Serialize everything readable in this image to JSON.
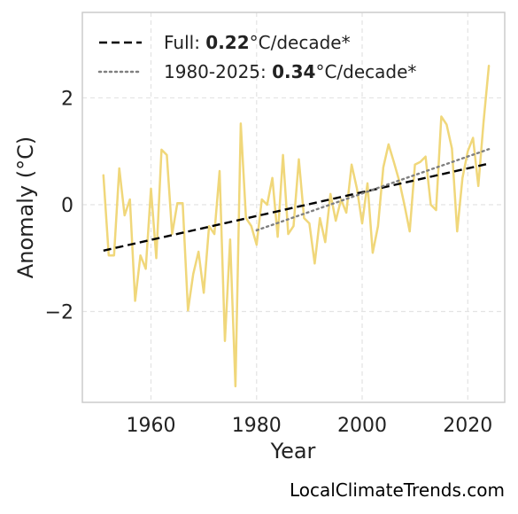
{
  "chart_data": {
    "type": "line",
    "xlabel": "Year",
    "ylabel": "Anomaly (°C)",
    "xlim": [
      1947,
      2027
    ],
    "ylim": [
      -3.7,
      3.6
    ],
    "x_ticks": [
      1960,
      1980,
      2000,
      2020
    ],
    "x_tick_labels": [
      "1960",
      "1980",
      "2000",
      "2020"
    ],
    "y_ticks": [
      -2,
      0,
      2
    ],
    "y_tick_labels": [
      "−2",
      "0",
      "2"
    ],
    "grid": true,
    "legend_position": "top-left",
    "series": [
      {
        "style": "solid",
        "color": "#f0d77a",
        "x": [
          1951,
          1952,
          1953,
          1954,
          1955,
          1956,
          1957,
          1958,
          1959,
          1960,
          1961,
          1962,
          1963,
          1964,
          1965,
          1966,
          1967,
          1968,
          1969,
          1970,
          1971,
          1972,
          1973,
          1974,
          1975,
          1976,
          1977,
          1978,
          1979,
          1980,
          1981,
          1982,
          1983,
          1984,
          1985,
          1986,
          1987,
          1988,
          1989,
          1990,
          1991,
          1992,
          1993,
          1994,
          1995,
          1996,
          1997,
          1998,
          1999,
          2000,
          2001,
          2002,
          2003,
          2004,
          2005,
          2006,
          2007,
          2008,
          2009,
          2010,
          2011,
          2012,
          2013,
          2014,
          2015,
          2016,
          2017,
          2018,
          2019,
          2020,
          2021,
          2022,
          2023,
          2024
        ],
        "y": [
          0.55,
          -0.95,
          -0.95,
          0.68,
          -0.2,
          0.1,
          -1.8,
          -0.95,
          -1.2,
          0.3,
          -1.0,
          1.03,
          0.93,
          -0.55,
          0.03,
          0.03,
          -1.98,
          -1.3,
          -0.88,
          -1.65,
          -0.4,
          -0.55,
          0.63,
          -2.55,
          -0.65,
          -3.4,
          1.52,
          -0.25,
          -0.4,
          -0.75,
          0.1,
          0.0,
          0.5,
          -0.6,
          0.93,
          -0.55,
          -0.4,
          0.85,
          -0.25,
          -0.35,
          -1.1,
          -0.25,
          -0.7,
          0.2,
          -0.3,
          0.1,
          -0.15,
          0.75,
          0.3,
          -0.35,
          0.4,
          -0.9,
          -0.4,
          0.7,
          1.13,
          0.8,
          0.45,
          0.0,
          -0.5,
          0.75,
          0.8,
          0.9,
          0.0,
          -0.1,
          1.65,
          1.5,
          1.05,
          -0.5,
          0.5,
          1.0,
          1.25,
          0.35,
          1.55,
          2.6
        ]
      },
      {
        "name": "Full",
        "style": "dashed",
        "color": "#000000",
        "x": [
          1951,
          2024
        ],
        "y": [
          -0.86,
          0.77
        ]
      },
      {
        "name": "1980-2025",
        "style": "dotted",
        "color": "#808080",
        "x": [
          1980,
          2024
        ],
        "y": [
          -0.48,
          1.04
        ]
      }
    ],
    "legend": [
      {
        "prefix": "Full: ",
        "value": "0.22",
        "suffix": "°C/decade*",
        "style": "dashed",
        "color": "#000000"
      },
      {
        "prefix": "1980-2025: ",
        "value": "0.34",
        "suffix": "°C/decade*",
        "style": "dotted",
        "color": "#808080"
      }
    ]
  },
  "credit": "LocalClimateTrends.com"
}
